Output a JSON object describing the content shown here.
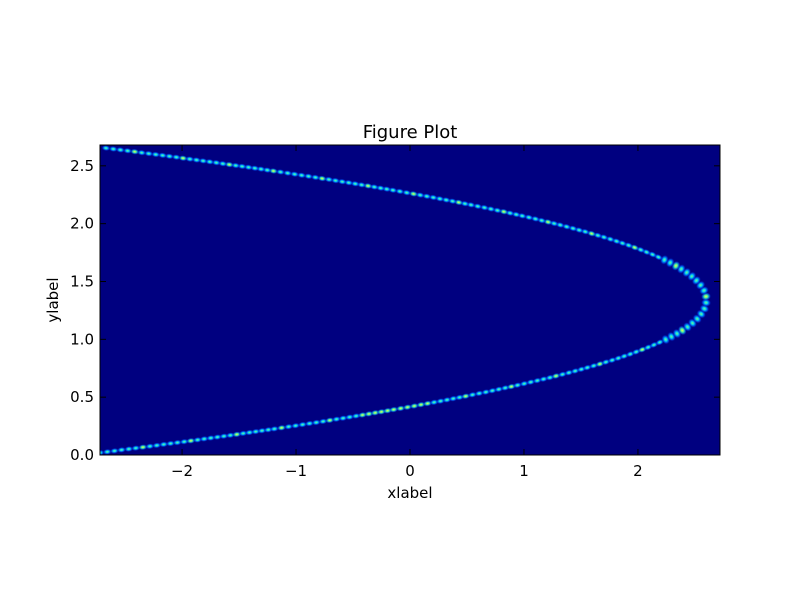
{
  "chart_data": {
    "type": "heatmap",
    "title": "Figure Plot",
    "xlabel": "xlabel",
    "ylabel": "ylabel",
    "xlim": [
      -2.72,
      2.72
    ],
    "ylim": [
      0.0,
      2.68
    ],
    "xticks": [
      -2,
      -1,
      0,
      1,
      2
    ],
    "yticks": [
      0.0,
      0.5,
      1.0,
      1.5,
      2.0,
      2.5
    ],
    "xtick_labels": [
      "−2",
      "−1",
      "0",
      "1",
      "2"
    ],
    "ytick_labels": [
      "0.0",
      "0.5",
      "1.0",
      "1.5",
      "2.0",
      "2.5"
    ],
    "grid": false,
    "colormap": "jet",
    "background_color": "#000080",
    "curve": {
      "description_free": true,
      "vertex": [
        2.6,
        1.34
      ],
      "upper_end": [
        -2.72,
        2.66
      ],
      "lower_end": [
        -2.72,
        0.02
      ],
      "peak_intensity_point": [
        0.0,
        0.21
      ]
    }
  }
}
